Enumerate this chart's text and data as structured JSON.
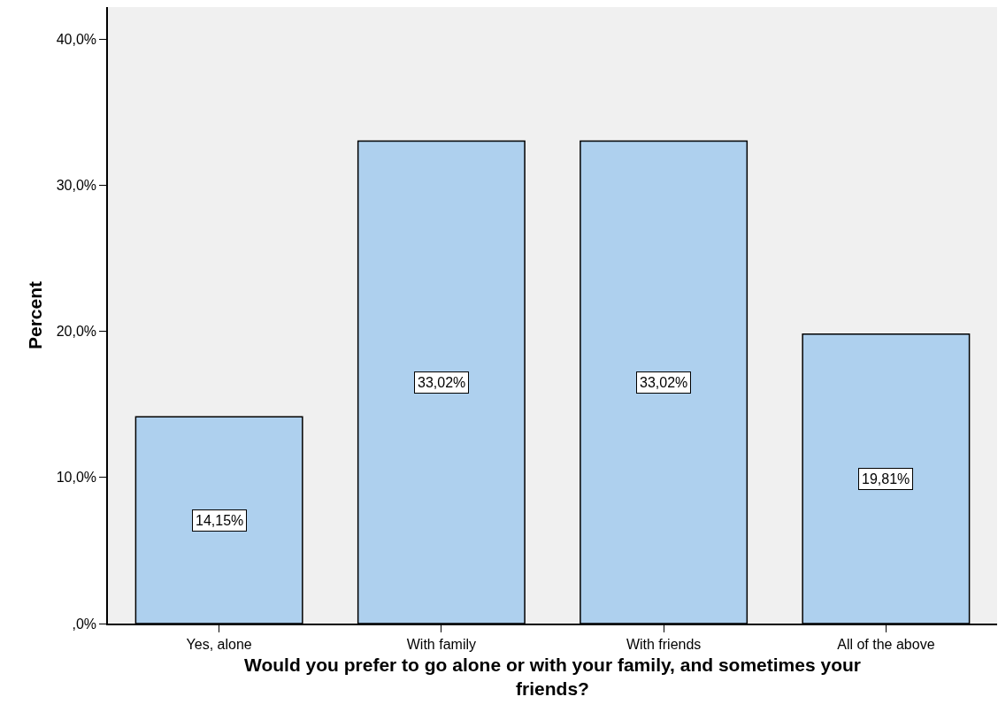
{
  "chart_data": {
    "type": "bar",
    "xlabel": "Would you prefer to go alone or with your family, and sometimes your friends?",
    "ylabel": "Percent",
    "categories": [
      "Yes, alone",
      "With family",
      "With friends",
      "All of the above"
    ],
    "values": [
      14.15,
      33.02,
      33.02,
      19.81
    ],
    "value_labels": [
      "14,15%",
      "33,02%",
      "33,02%",
      "19,81%"
    ],
    "color": "#aed0ee",
    "ylim": [
      0,
      42.2
    ],
    "yticks": [
      {
        "value": 0,
        "label": ",0%"
      },
      {
        "value": 10,
        "label": "10,0%"
      },
      {
        "value": 20,
        "label": "20,0%"
      },
      {
        "value": 30,
        "label": "30,0%"
      },
      {
        "value": 40,
        "label": "40,0%"
      }
    ],
    "grid": false,
    "legend": false
  }
}
